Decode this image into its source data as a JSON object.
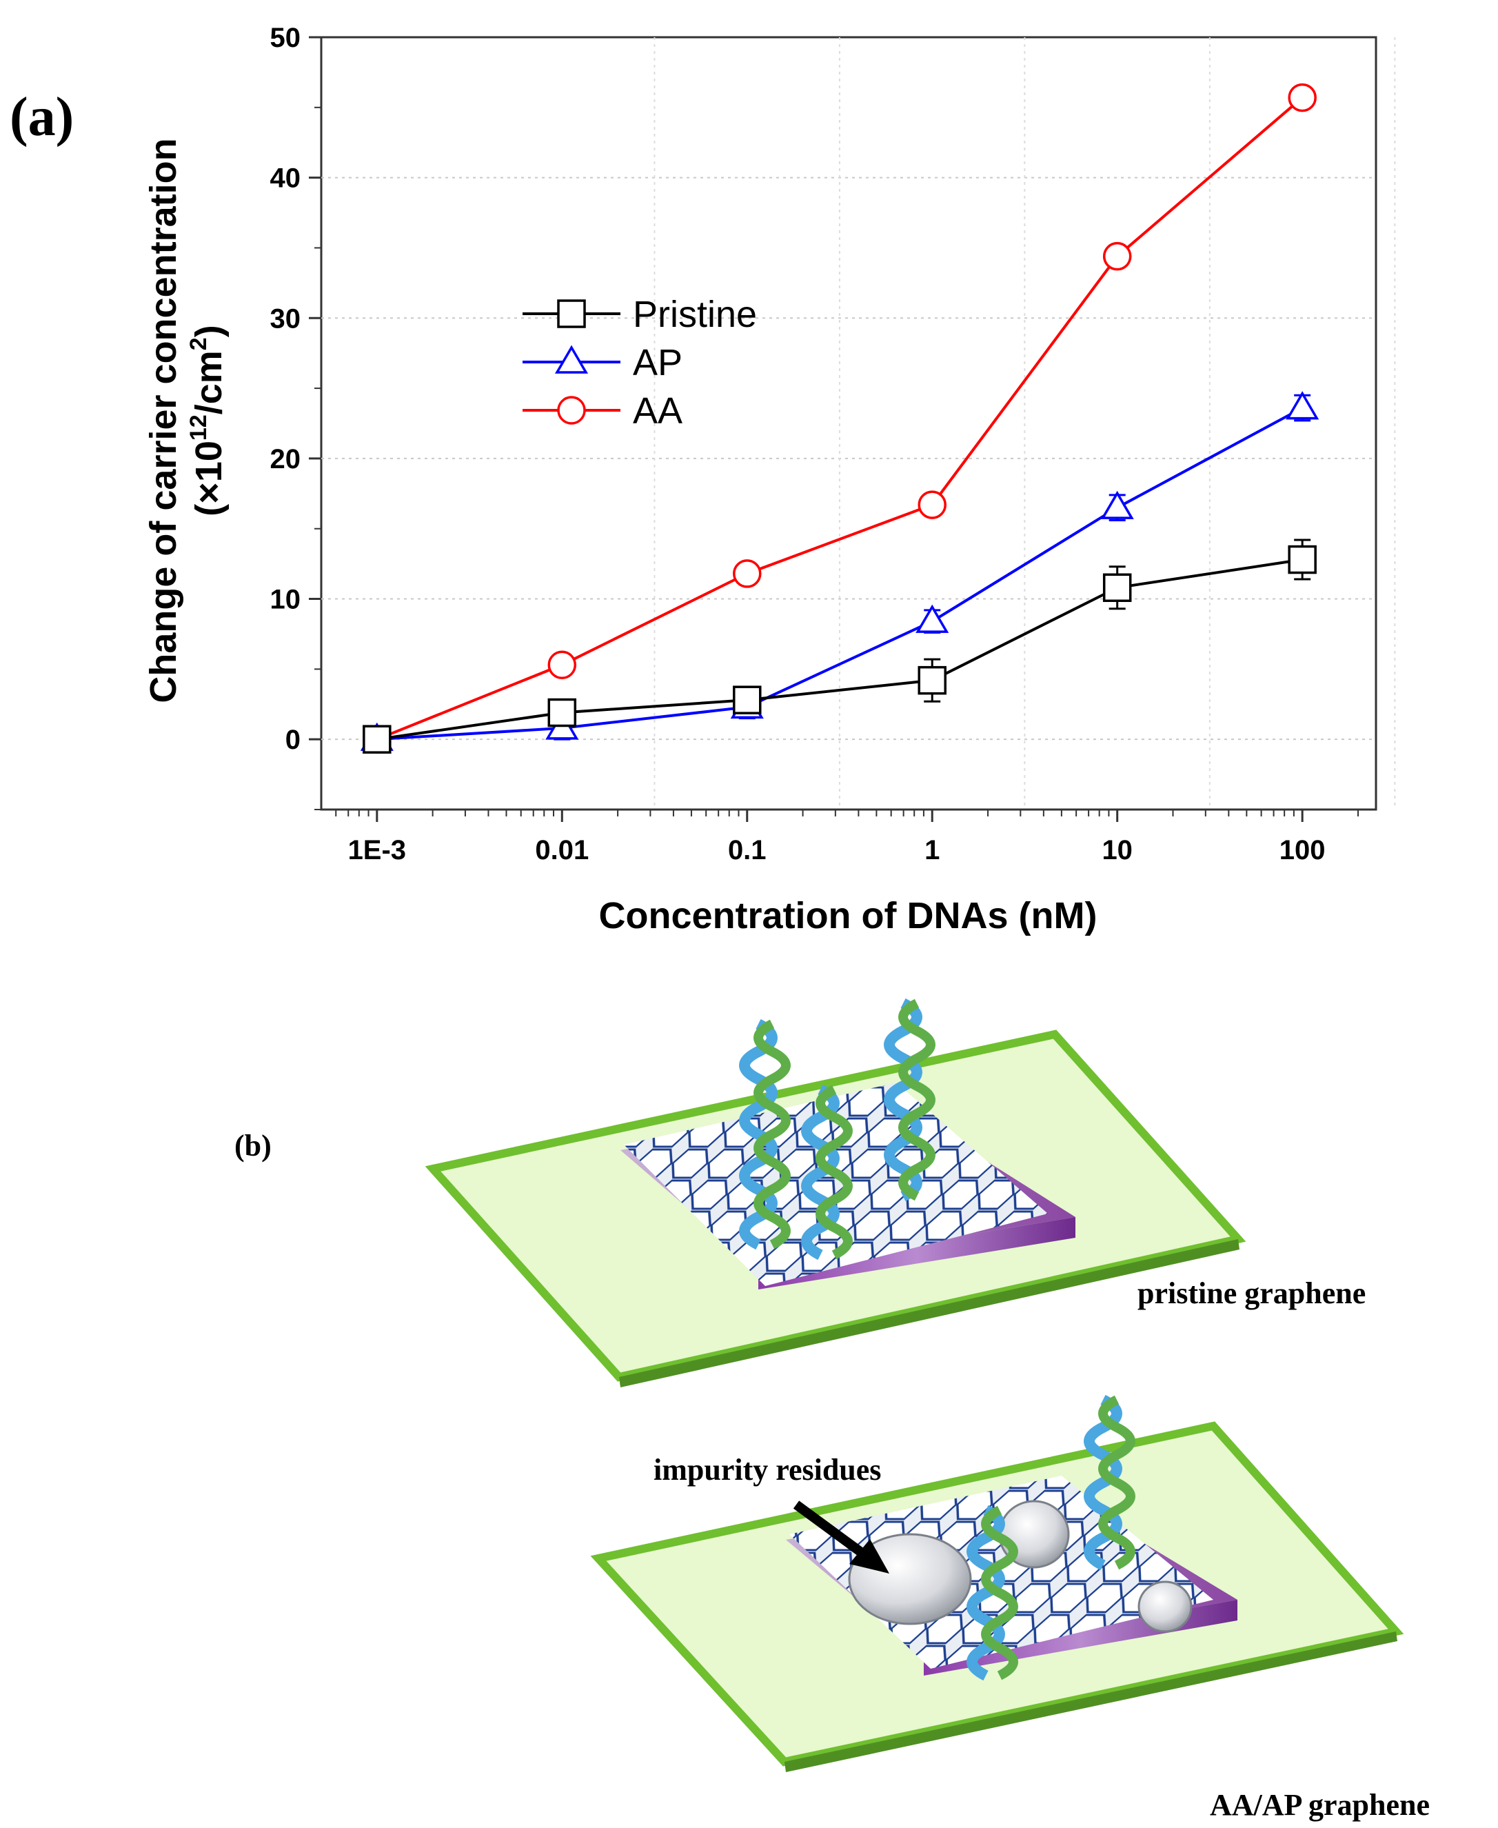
{
  "panel_a_label": "(a)",
  "panel_b_label": "(b)",
  "chart_data": {
    "type": "line",
    "xscale": "log",
    "categories": [
      "1E-3",
      "0.01",
      "0.1",
      "1",
      "10",
      "100"
    ],
    "x": [
      0.001,
      0.01,
      0.1,
      1,
      10,
      100
    ],
    "xlabel": "Concentration of DNAs (nM)",
    "ylabel_line1": "Change of carrier concentration",
    "ylabel_line2_prefix": "(×10",
    "ylabel_line2_exp": "12",
    "ylabel_line2_mid": "/cm",
    "ylabel_line2_exp2": "2",
    "ylabel_line2_suffix": ")",
    "ylim": [
      -5,
      50
    ],
    "yticks": [
      0,
      10,
      20,
      30,
      40,
      50
    ],
    "grid": true,
    "legend_position": "upper-left",
    "series": [
      {
        "name": "Pristine",
        "color": "#000000",
        "marker": "square",
        "values": [
          0,
          1.9,
          2.8,
          4.2,
          10.8,
          12.8
        ],
        "errors": [
          0.3,
          0.6,
          0.7,
          1.5,
          1.5,
          1.4
        ]
      },
      {
        "name": "AP",
        "color": "#0000ff",
        "marker": "triangle",
        "values": [
          0,
          0.8,
          2.3,
          8.4,
          16.5,
          23.6
        ],
        "errors": [
          0.3,
          0.8,
          0.8,
          0.8,
          0.9,
          0.9
        ]
      },
      {
        "name": "AA",
        "color": "#ff0000",
        "marker": "circle",
        "values": [
          0,
          5.3,
          11.8,
          16.7,
          34.4,
          45.7
        ],
        "errors": [
          0.2,
          0.6,
          0.6,
          0.6,
          0.6,
          0.6
        ]
      }
    ]
  },
  "diagram": {
    "label_pristine": "pristine graphene",
    "label_aa_ap": "AA/AP graphene",
    "label_impurity": "impurity residues"
  }
}
